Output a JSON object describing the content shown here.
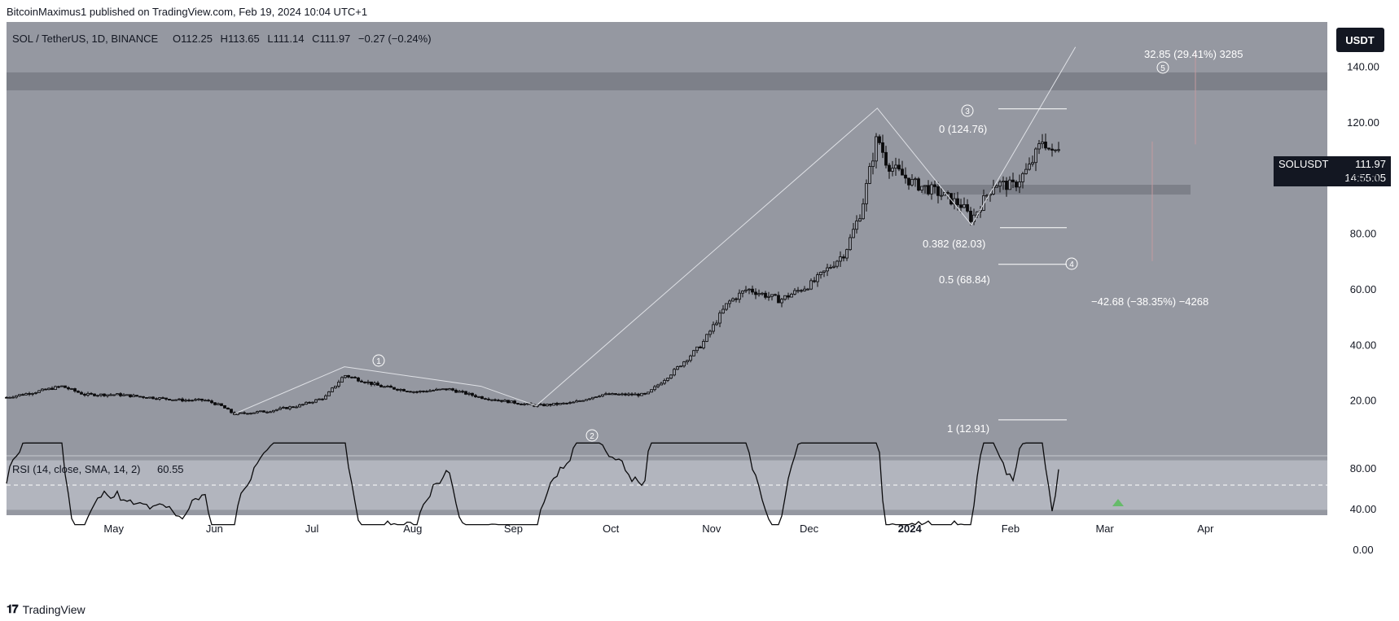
{
  "header": {
    "publisher": "BitcoinMaximus1 published on TradingView.com, Feb 19, 2024 10:04 UTC+1"
  },
  "footer": {
    "brand": "TradingView",
    "logo_icon": "tradingview-logo-icon"
  },
  "colors": {
    "page_bg": "#ffffff",
    "chart_bg": "#9598a1",
    "rsi_band": "#b2b5be",
    "zone": "#7d8089",
    "candle": "#0a0a0c",
    "price_badge": "#131722",
    "currency_badge": "#131722",
    "rsi_signal": "#66bb6a"
  },
  "symbol": {
    "pair": "SOL / TetherUS, 1D, BINANCE",
    "o_label": "O",
    "o": "112.25",
    "h_label": "H",
    "h": "113.65",
    "l_label": "L",
    "l": "111.14",
    "c_label": "C",
    "c": "111.97",
    "change": "−0.27 (−0.24%)"
  },
  "currency_button": "USDT",
  "last_price": {
    "symbol": "SOLUSDT",
    "price": "111.97",
    "countdown": "14:55:05"
  },
  "rsi": {
    "title": "RSI (14, close, SMA, 14, 2)",
    "value": "60.55",
    "ticks": [
      "80.00",
      "40.00",
      "0.00"
    ],
    "band": [
      30,
      70
    ],
    "midline": 50
  },
  "annotations": {
    "fib": [
      {
        "label": "0 (124.76)",
        "price": 124.76
      },
      {
        "label": "0.382 (82.03)",
        "price": 82.03
      },
      {
        "label": "0.5 (68.84)",
        "price": 68.84
      },
      {
        "label": "1 (12.91)",
        "price": 12.91
      }
    ],
    "measure_up": "32.85 (29.41%) 3285",
    "measure_down": "−42.68 (−38.35%) −4268",
    "waves": [
      "1",
      "2",
      "3",
      "4",
      "5"
    ]
  },
  "chart_data": {
    "type": "line",
    "title": "SOL / TetherUS, 1D, BINANCE",
    "ylim": [
      0,
      156
    ],
    "y_ticks": [
      "20.00",
      "40.00",
      "60.00",
      "80.00",
      "100.00",
      "120.00",
      "140.00"
    ],
    "x_ticks": [
      "May",
      "Jun",
      "Jul",
      "Aug",
      "Sep",
      "Oct",
      "Nov",
      "Dec",
      "2024",
      "Feb",
      "Mar",
      "Apr"
    ],
    "series": [
      {
        "values": [
          {
            "x": "2023-04-01",
            "y": 21
          },
          {
            "x": "2023-04-10",
            "y": 23
          },
          {
            "x": "2023-04-18",
            "y": 25
          },
          {
            "x": "2023-04-25",
            "y": 22
          },
          {
            "x": "2023-05-05",
            "y": 22
          },
          {
            "x": "2023-05-15",
            "y": 21
          },
          {
            "x": "2023-05-25",
            "y": 20
          },
          {
            "x": "2023-06-01",
            "y": 20
          },
          {
            "x": "2023-06-06",
            "y": 18
          },
          {
            "x": "2023-06-10",
            "y": 15
          },
          {
            "x": "2023-06-20",
            "y": 16
          },
          {
            "x": "2023-06-30",
            "y": 18
          },
          {
            "x": "2023-07-08",
            "y": 21
          },
          {
            "x": "2023-07-14",
            "y": 29
          },
          {
            "x": "2023-07-25",
            "y": 25
          },
          {
            "x": "2023-08-05",
            "y": 23
          },
          {
            "x": "2023-08-15",
            "y": 24
          },
          {
            "x": "2023-08-25",
            "y": 21
          },
          {
            "x": "2023-09-05",
            "y": 19
          },
          {
            "x": "2023-09-11",
            "y": 18
          },
          {
            "x": "2023-09-22",
            "y": 19
          },
          {
            "x": "2023-10-01",
            "y": 22
          },
          {
            "x": "2023-10-15",
            "y": 22
          },
          {
            "x": "2023-10-23",
            "y": 30
          },
          {
            "x": "2023-11-01",
            "y": 40
          },
          {
            "x": "2023-11-09",
            "y": 55
          },
          {
            "x": "2023-11-15",
            "y": 60
          },
          {
            "x": "2023-11-25",
            "y": 56
          },
          {
            "x": "2023-12-05",
            "y": 62
          },
          {
            "x": "2023-12-15",
            "y": 73
          },
          {
            "x": "2023-12-20",
            "y": 88
          },
          {
            "x": "2023-12-25",
            "y": 115
          },
          {
            "x": "2023-12-28",
            "y": 105
          },
          {
            "x": "2024-01-05",
            "y": 98
          },
          {
            "x": "2024-01-12",
            "y": 95
          },
          {
            "x": "2024-01-20",
            "y": 90
          },
          {
            "x": "2024-01-23",
            "y": 85
          },
          {
            "x": "2024-01-30",
            "y": 98
          },
          {
            "x": "2024-02-05",
            "y": 97
          },
          {
            "x": "2024-02-10",
            "y": 104
          },
          {
            "x": "2024-02-14",
            "y": 114
          },
          {
            "x": "2024-02-17",
            "y": 108
          },
          {
            "x": "2024-02-19",
            "y": 111.97
          }
        ]
      }
    ]
  }
}
